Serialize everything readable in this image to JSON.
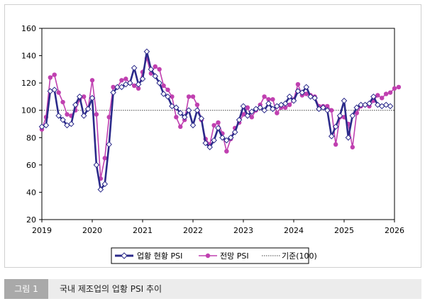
{
  "caption": {
    "number": "그림 1",
    "text": "국내 제조업의 업황 PSI 추이"
  },
  "chart_data": {
    "type": "line",
    "ylim": [
      20,
      160
    ],
    "yticks": [
      20,
      40,
      60,
      80,
      100,
      120,
      140,
      160
    ],
    "xticks": [
      2019,
      2020,
      2021,
      2022,
      2023,
      2024,
      2025,
      2026
    ],
    "x_start": 2019.0,
    "x_step": 0.0833333,
    "grid": false,
    "legend_position": "bottom",
    "series": [
      {
        "name": "업황 현황 PSI",
        "color": "#2b2a8a",
        "marker": "diamond",
        "values": [
          88,
          89,
          114,
          115,
          96,
          93,
          89,
          90,
          104,
          110,
          96,
          101,
          109,
          60,
          42,
          46,
          75,
          113,
          117,
          117,
          119,
          120,
          131,
          119,
          123,
          143,
          130,
          125,
          120,
          112,
          110,
          103,
          102,
          98,
          95,
          100,
          89,
          100,
          94,
          76,
          73,
          78,
          87,
          80,
          78,
          80,
          84,
          93,
          103,
          96,
          99,
          101,
          102,
          100,
          105,
          101,
          103,
          104,
          105,
          110,
          107,
          114,
          113,
          117,
          110,
          109,
          101,
          102,
          100,
          81,
          88,
          96,
          107,
          80,
          96,
          102,
          104,
          104,
          105,
          110,
          104,
          103,
          104,
          103
        ]
      },
      {
        "name": "전망 PSI",
        "color": "#c040b0",
        "marker": "circle",
        "values": [
          86,
          95,
          124,
          126,
          113,
          106,
          97,
          96,
          100,
          108,
          110,
          101,
          122,
          97,
          50,
          65,
          95,
          117,
          117,
          122,
          123,
          120,
          118,
          116,
          128,
          138,
          127,
          132,
          130,
          118,
          115,
          110,
          95,
          88,
          93,
          110,
          110,
          104,
          93,
          79,
          75,
          89,
          91,
          83,
          70,
          79,
          87,
          91,
          97,
          102,
          95,
          100,
          104,
          110,
          108,
          108,
          98,
          102,
          102,
          104,
          108,
          119,
          111,
          112,
          111,
          110,
          103,
          103,
          103,
          100,
          75,
          95,
          95,
          90,
          73,
          98,
          103,
          104,
          103,
          107,
          111,
          109,
          112,
          113,
          116,
          117
        ]
      },
      {
        "name": "기준(100)",
        "color": "#444444",
        "style": "dotted",
        "values": [
          100
        ]
      }
    ]
  }
}
